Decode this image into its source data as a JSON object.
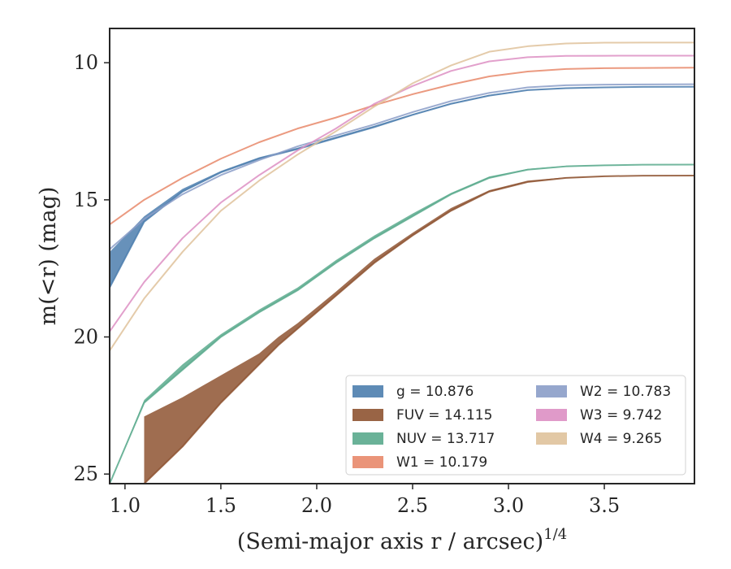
{
  "chart_data": {
    "type": "line",
    "title": "",
    "xlabel": "(Semi-major axis r / arcsec)^{1/4}",
    "ylabel": "m(<r) (mag)",
    "xlim": [
      0.92,
      3.97
    ],
    "ylim": [
      25.35,
      8.75
    ],
    "y_inverted": true,
    "grid": false,
    "legend_position": "lower-right",
    "x_ticks": [
      "1.0",
      "1.5",
      "2.0",
      "2.5",
      "3.0",
      "3.5"
    ],
    "y_ticks": [
      "10",
      "15",
      "20",
      "25"
    ],
    "series": [
      {
        "name": "g",
        "legend": "g = 10.876",
        "color": "#4c7eae",
        "x": [
          0.92,
          1.1,
          1.3,
          1.5,
          1.7,
          1.9,
          2.1,
          2.3,
          2.5,
          2.7,
          2.9,
          3.1,
          3.3,
          3.5,
          3.7,
          3.97
        ],
        "y": [
          18.2,
          15.8,
          14.7,
          14.0,
          13.5,
          13.15,
          12.75,
          12.35,
          11.9,
          11.5,
          11.2,
          11.0,
          10.93,
          10.9,
          10.88,
          10.876
        ],
        "upper": [
          16.9,
          15.6,
          14.6,
          13.95,
          13.45,
          13.1,
          12.7,
          12.3,
          11.87,
          11.47,
          11.17,
          10.98,
          10.91,
          10.89,
          10.88,
          10.876
        ]
      },
      {
        "name": "FUV",
        "legend": "FUV = 14.115",
        "color": "#8e5331",
        "x": [
          1.1,
          1.3,
          1.5,
          1.7,
          1.8,
          1.9,
          2.1,
          2.3,
          2.5,
          2.7,
          2.9,
          3.1,
          3.3,
          3.5,
          3.7,
          3.97
        ],
        "y": [
          25.35,
          24.0,
          22.4,
          21.0,
          20.3,
          19.7,
          18.5,
          17.3,
          16.3,
          15.4,
          14.7,
          14.35,
          14.2,
          14.14,
          14.12,
          14.115
        ],
        "upper": [
          22.9,
          22.2,
          21.4,
          20.6,
          20.0,
          19.5,
          18.35,
          17.15,
          16.2,
          15.3,
          14.65,
          14.3,
          14.18,
          14.13,
          14.12,
          14.115
        ]
      },
      {
        "name": "NUV",
        "legend": "NUV = 13.717",
        "color": "#5aaa8d",
        "x": [
          0.92,
          1.1,
          1.3,
          1.5,
          1.7,
          1.9,
          2.1,
          2.3,
          2.5,
          2.7,
          2.9,
          3.1,
          3.3,
          3.5,
          3.7,
          3.97
        ],
        "y": [
          25.35,
          22.4,
          21.2,
          20.0,
          19.1,
          18.3,
          17.3,
          16.4,
          15.6,
          14.8,
          14.2,
          13.9,
          13.78,
          13.74,
          13.72,
          13.717
        ],
        "upper": [
          25.35,
          22.3,
          21.0,
          19.9,
          19.0,
          18.2,
          17.2,
          16.3,
          15.5,
          14.75,
          14.15,
          13.87,
          13.76,
          13.73,
          13.72,
          13.717
        ]
      },
      {
        "name": "W1",
        "legend": "W1 = 10.179",
        "color": "#e8886a",
        "x": [
          0.92,
          1.1,
          1.3,
          1.5,
          1.7,
          1.9,
          2.1,
          2.3,
          2.5,
          2.7,
          2.9,
          3.1,
          3.3,
          3.5,
          3.7,
          3.97
        ],
        "y": [
          15.9,
          15.0,
          14.2,
          13.5,
          12.9,
          12.4,
          12.0,
          11.55,
          11.15,
          10.8,
          10.5,
          10.32,
          10.23,
          10.2,
          10.19,
          10.179
        ]
      },
      {
        "name": "W2",
        "legend": "W2 = 10.783",
        "color": "#8b9dc8",
        "x": [
          0.92,
          1.1,
          1.3,
          1.5,
          1.7,
          1.9,
          2.1,
          2.3,
          2.5,
          2.7,
          2.9,
          3.1,
          3.3,
          3.5,
          3.7,
          3.97
        ],
        "y": [
          16.8,
          15.7,
          14.8,
          14.1,
          13.55,
          13.05,
          12.65,
          12.25,
          11.8,
          11.4,
          11.1,
          10.9,
          10.82,
          10.8,
          10.79,
          10.783
        ]
      },
      {
        "name": "W3",
        "legend": "W3 = 9.742",
        "color": "#dd8fc3",
        "x": [
          0.92,
          1.1,
          1.3,
          1.5,
          1.7,
          1.9,
          2.1,
          2.3,
          2.5,
          2.7,
          2.9,
          3.1,
          3.3,
          3.5,
          3.7,
          3.97
        ],
        "y": [
          19.8,
          18.0,
          16.4,
          15.1,
          14.1,
          13.2,
          12.4,
          11.5,
          10.85,
          10.3,
          9.95,
          9.8,
          9.75,
          9.745,
          9.742,
          9.742
        ]
      },
      {
        "name": "W4",
        "legend": "W4 = 9.265",
        "color": "#dfc29b",
        "x": [
          0.92,
          1.1,
          1.3,
          1.5,
          1.7,
          1.9,
          2.1,
          2.3,
          2.5,
          2.7,
          2.9,
          3.1,
          3.3,
          3.5,
          3.7,
          3.97
        ],
        "y": [
          20.5,
          18.6,
          16.9,
          15.4,
          14.3,
          13.35,
          12.5,
          11.6,
          10.75,
          10.1,
          9.6,
          9.4,
          9.3,
          9.27,
          9.265,
          9.265
        ]
      }
    ]
  }
}
